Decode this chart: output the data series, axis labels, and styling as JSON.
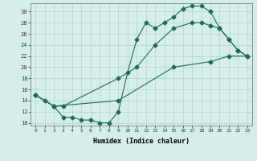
{
  "xlabel": "Humidex (Indice chaleur)",
  "bg_color": "#d6eeea",
  "grid_color": "#b8d8d2",
  "line_color": "#1a6b5a",
  "xlim": [
    -0.5,
    23.5
  ],
  "ylim": [
    9.5,
    31.5
  ],
  "xticks": [
    0,
    1,
    2,
    3,
    4,
    5,
    6,
    7,
    8,
    9,
    10,
    11,
    12,
    13,
    14,
    15,
    16,
    17,
    18,
    19,
    20,
    21,
    22,
    23
  ],
  "yticks": [
    10,
    12,
    14,
    16,
    18,
    20,
    22,
    24,
    26,
    28,
    30
  ],
  "line1_x": [
    0,
    1,
    2,
    3,
    4,
    5,
    6,
    7,
    8,
    9,
    10,
    11,
    12,
    13,
    14,
    15,
    16,
    17,
    18,
    19,
    20,
    21,
    22,
    23
  ],
  "line1_y": [
    15,
    14,
    13,
    11,
    11,
    10.5,
    10.5,
    10,
    10,
    12,
    19,
    25,
    28,
    27,
    28,
    29,
    30.5,
    31,
    31,
    30,
    27,
    25,
    23,
    22
  ],
  "line2_x": [
    0,
    2,
    3,
    9,
    11,
    13,
    15,
    17,
    18,
    19,
    20,
    21,
    22,
    23
  ],
  "line2_y": [
    15,
    13,
    13,
    18,
    20,
    24,
    27,
    28,
    28,
    27.5,
    27,
    25,
    23,
    22
  ],
  "line3_x": [
    0,
    2,
    9,
    15,
    19,
    21,
    23
  ],
  "line3_y": [
    15,
    13,
    14,
    20,
    21,
    22,
    22
  ]
}
